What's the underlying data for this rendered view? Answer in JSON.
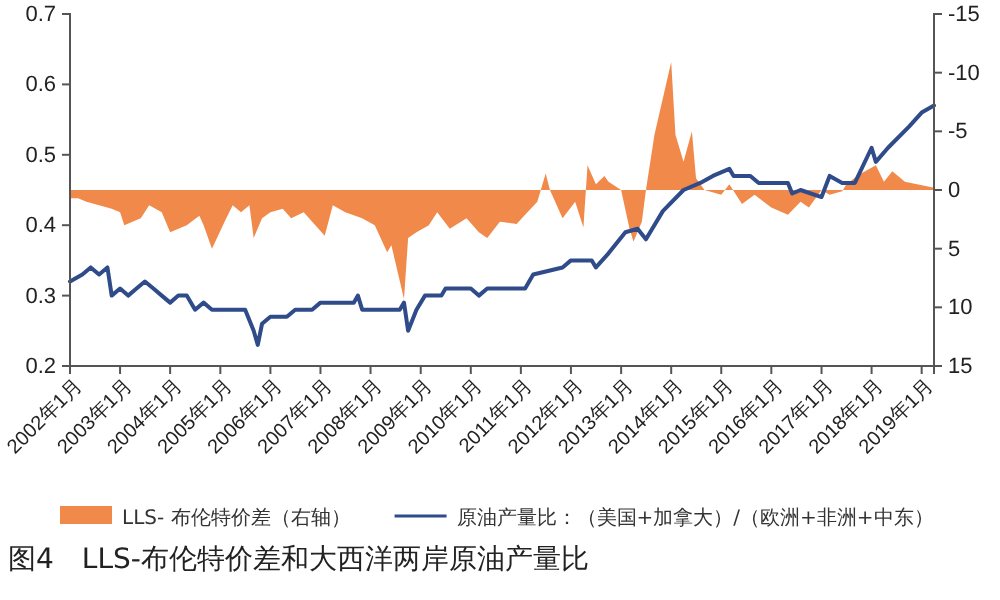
{
  "chart_data": {
    "type": "line",
    "title": "图4　LLS-布伦特价差和大西洋两岸原油产量比",
    "xlim": [
      "2002-01",
      "2019-04"
    ],
    "xticks": [
      {
        "value": "2002-01",
        "label": "2002年1月"
      },
      {
        "value": "2003-01",
        "label": "2003年1月"
      },
      {
        "value": "2004-01",
        "label": "2004年1月"
      },
      {
        "value": "2005-01",
        "label": "2005年1月"
      },
      {
        "value": "2006-01",
        "label": "2006年1月"
      },
      {
        "value": "2007-01",
        "label": "2007年1月"
      },
      {
        "value": "2008-01",
        "label": "2008年1月"
      },
      {
        "value": "2009-01",
        "label": "2009年1月"
      },
      {
        "value": "2010-01",
        "label": "2010年1月"
      },
      {
        "value": "2011-01",
        "label": "2011年1月"
      },
      {
        "value": "2012-01",
        "label": "2012年1月"
      },
      {
        "value": "2013-01",
        "label": "2013年1月"
      },
      {
        "value": "2014-01",
        "label": "2014年1月"
      },
      {
        "value": "2015-01",
        "label": "2015年1月"
      },
      {
        "value": "2016-01",
        "label": "2016年1月"
      },
      {
        "value": "2017-01",
        "label": "2017年1月"
      },
      {
        "value": "2018-01",
        "label": "2018年1月"
      },
      {
        "value": "2019-01",
        "label": "2019年1月"
      }
    ],
    "ylim": [
      0.2,
      0.7
    ],
    "yticks": [
      0.2,
      0.3,
      0.4,
      0.5,
      0.6,
      0.7
    ],
    "y2lim": [
      15,
      -15
    ],
    "y2ticks": [
      15,
      10,
      5,
      0,
      -5,
      -10,
      -15
    ],
    "grid": false,
    "legend": "bottom",
    "series": [
      {
        "name": "LLS- 布伦特价差（右轴）",
        "type": "area",
        "axis": "y2",
        "color": "#f0894a",
        "x": [
          "2002-01",
          "2002-03",
          "2002-05",
          "2002-08",
          "2002-11",
          "2003-01",
          "2003-02",
          "2003-04",
          "2003-06",
          "2003-08",
          "2003-11",
          "2004-01",
          "2004-05",
          "2004-08",
          "2004-09",
          "2004-11",
          "2005-02",
          "2005-04",
          "2005-06",
          "2005-08",
          "2005-09",
          "2005-11",
          "2006-01",
          "2006-04",
          "2006-06",
          "2006-09",
          "2007-02",
          "2007-04",
          "2007-07",
          "2007-11",
          "2008-02",
          "2008-05",
          "2008-06",
          "2008-09",
          "2008-10",
          "2008-12",
          "2009-03",
          "2009-05",
          "2009-08",
          "2009-12",
          "2010-03",
          "2010-05",
          "2010-08",
          "2010-12",
          "2011-02",
          "2011-05",
          "2011-07",
          "2011-08",
          "2011-11",
          "2012-02",
          "2012-04",
          "2012-05",
          "2012-07",
          "2012-09",
          "2012-10",
          "2013-01",
          "2013-03",
          "2013-04",
          "2013-06",
          "2013-07",
          "2013-09",
          "2014-01",
          "2014-02",
          "2014-04",
          "2014-06",
          "2014-07",
          "2014-09",
          "2015-01",
          "2015-03",
          "2015-06",
          "2015-09",
          "2016-01",
          "2016-05",
          "2016-08",
          "2016-10",
          "2017-01",
          "2017-03",
          "2017-06",
          "2017-07",
          "2017-10",
          "2018-02",
          "2018-04",
          "2018-06",
          "2018-09",
          "2019-04"
        ],
        "values": [
          0.7,
          0.7,
          1.0,
          1.3,
          1.6,
          1.9,
          3.0,
          2.7,
          2.4,
          1.3,
          1.9,
          3.6,
          3.0,
          2.2,
          3.0,
          5.0,
          2.7,
          1.3,
          1.9,
          1.3,
          4.1,
          2.4,
          1.9,
          1.6,
          2.4,
          1.9,
          3.9,
          1.3,
          1.9,
          2.4,
          3.0,
          5.3,
          4.7,
          9.3,
          4.1,
          3.6,
          3.0,
          1.9,
          3.3,
          2.4,
          3.6,
          4.1,
          2.7,
          2.9,
          2.1,
          1.0,
          -1.4,
          0,
          2.4,
          1.0,
          3.2,
          -2.1,
          -0.5,
          -1.2,
          -0.7,
          0,
          3.2,
          4.4,
          2.7,
          0,
          -4.7,
          -10.9,
          -4.7,
          -2.4,
          -5.0,
          -1.0,
          0,
          0.4,
          -0.5,
          1.2,
          0.4,
          1.5,
          2.1,
          1.0,
          1.5,
          0,
          0.4,
          0.1,
          -0.5,
          -1.3,
          -2.1,
          -0.7,
          -1.6,
          -0.7,
          -0.2
        ]
      },
      {
        "name": "原油产量比：（美国+加拿大）/（欧洲+非洲+中东）",
        "color": "#2f4b8a",
        "x": [
          "2002-01",
          "2002-04",
          "2002-06",
          "2002-08",
          "2002-10",
          "2002-11",
          "2003-01",
          "2003-03",
          "2003-05",
          "2003-07",
          "2003-09",
          "2003-11",
          "2004-01",
          "2004-03",
          "2004-05",
          "2004-07",
          "2004-09",
          "2004-11",
          "2005-02",
          "2005-07",
          "2005-09",
          "2005-10",
          "2005-11",
          "2006-01",
          "2006-05",
          "2006-07",
          "2006-11",
          "2007-01",
          "2007-09",
          "2007-10",
          "2007-11",
          "2008-01",
          "2008-08",
          "2008-09",
          "2008-10",
          "2008-12",
          "2009-02",
          "2009-06",
          "2009-07",
          "2010-01",
          "2010-03",
          "2010-05",
          "2010-08",
          "2010-12",
          "2011-02",
          "2011-04",
          "2011-11",
          "2012-01",
          "2012-06",
          "2012-07",
          "2012-10",
          "2013-02",
          "2013-05",
          "2013-07",
          "2013-11",
          "2014-04",
          "2014-08",
          "2014-11",
          "2015-03",
          "2015-04",
          "2015-08",
          "2015-10",
          "2016-05",
          "2016-06",
          "2016-08",
          "2017-01",
          "2017-03",
          "2017-06",
          "2017-09",
          "2018-01",
          "2018-02",
          "2018-05",
          "2018-10",
          "2019-01",
          "2019-04"
        ],
        "values": [
          0.32,
          0.33,
          0.34,
          0.33,
          0.34,
          0.3,
          0.31,
          0.3,
          0.31,
          0.32,
          0.31,
          0.3,
          0.29,
          0.3,
          0.3,
          0.28,
          0.29,
          0.28,
          0.28,
          0.28,
          0.25,
          0.23,
          0.26,
          0.27,
          0.27,
          0.28,
          0.28,
          0.29,
          0.29,
          0.3,
          0.28,
          0.28,
          0.28,
          0.29,
          0.25,
          0.28,
          0.3,
          0.3,
          0.31,
          0.31,
          0.3,
          0.31,
          0.31,
          0.31,
          0.31,
          0.33,
          0.34,
          0.35,
          0.35,
          0.34,
          0.36,
          0.39,
          0.395,
          0.38,
          0.42,
          0.45,
          0.46,
          0.47,
          0.48,
          0.47,
          0.47,
          0.46,
          0.46,
          0.445,
          0.45,
          0.44,
          0.47,
          0.46,
          0.46,
          0.51,
          0.49,
          0.51,
          0.54,
          0.56,
          0.57
        ]
      }
    ]
  }
}
